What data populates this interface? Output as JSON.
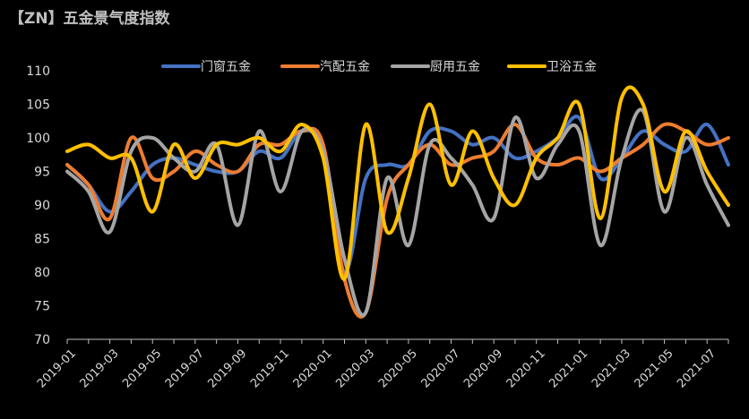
{
  "title": "【ZN】五金景气度指数",
  "chart_data": {
    "type": "line",
    "title": "【ZN】五金景气度指数",
    "xlabel": "",
    "ylabel": "",
    "ylim": [
      70,
      110
    ],
    "yticks": [
      70,
      75,
      80,
      85,
      90,
      95,
      100,
      105,
      110
    ],
    "x": [
      "2019-01",
      "2019-02",
      "2019-03",
      "2019-04",
      "2019-05",
      "2019-06",
      "2019-07",
      "2019-08",
      "2019-09",
      "2019-10",
      "2019-11",
      "2019-12",
      "2020-01",
      "2020-02",
      "2020-03",
      "2020-04",
      "2020-05",
      "2020-06",
      "2020-07",
      "2020-08",
      "2020-09",
      "2020-10",
      "2020-11",
      "2020-12",
      "2021-01",
      "2021-02",
      "2021-03",
      "2021-04",
      "2021-05",
      "2021-06",
      "2021-07",
      "2021-08"
    ],
    "xticks": [
      "2019-01",
      "2019-03",
      "2019-05",
      "2019-07",
      "2019-09",
      "2019-11",
      "2020-01",
      "2020-03",
      "2020-05",
      "2020-07",
      "2020-09",
      "2020-11",
      "2021-01",
      "2021-03",
      "2021-05",
      "2021-07"
    ],
    "legend_position": "top",
    "grid": false,
    "series": [
      {
        "name": "门窗五金",
        "color": "#4472c4",
        "values": [
          96,
          93,
          89,
          92,
          96,
          97,
          96,
          95,
          95,
          98,
          97,
          101,
          98,
          80,
          94,
          96,
          96,
          101,
          101,
          99,
          100,
          97,
          98,
          100,
          103,
          94,
          97,
          101,
          99,
          98,
          102,
          96
        ]
      },
      {
        "name": "汽配五金",
        "color": "#ed7d31",
        "values": [
          96,
          93,
          88,
          100,
          94,
          95,
          98,
          96,
          95,
          99,
          99,
          101,
          99,
          79,
          74,
          91,
          96,
          99,
          96,
          97,
          98,
          102,
          97,
          96,
          97,
          95,
          97,
          99,
          102,
          101,
          99,
          100
        ]
      },
      {
        "name": "厨用五金",
        "color": "#a5a5a5",
        "values": [
          95,
          92,
          86,
          98,
          100,
          97,
          95,
          99,
          87,
          101,
          92,
          101,
          98,
          82,
          74,
          94,
          84,
          99,
          97,
          93,
          88,
          103,
          94,
          99,
          101,
          84,
          97,
          104,
          89,
          100,
          93,
          87
        ]
      },
      {
        "name": "卫浴五金",
        "color": "#ffc000",
        "values": [
          98,
          99,
          97,
          97,
          89,
          99,
          94,
          99,
          99,
          100,
          98,
          102,
          97,
          79,
          102,
          86,
          94,
          105,
          93,
          101,
          94,
          90,
          97,
          100,
          105,
          88,
          106,
          105,
          92,
          101,
          95,
          90
        ]
      }
    ]
  }
}
